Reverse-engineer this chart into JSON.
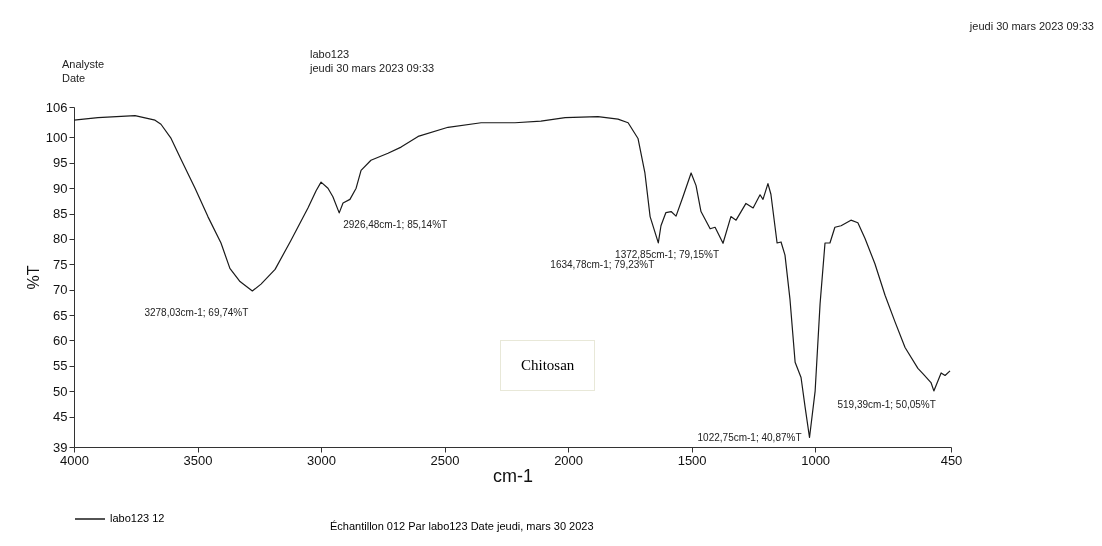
{
  "chart_data": {
    "type": "line",
    "xlabel": "cm-1",
    "ylabel": "%T",
    "x": [
      4000,
      3903,
      3753,
      3672,
      3648,
      3607,
      3567,
      3510,
      3458,
      3405,
      3369,
      3328,
      3278.03,
      3243,
      3186,
      3122,
      3053,
      3020,
      3000,
      2972,
      2952,
      2926.48,
      2911,
      2883,
      2858,
      2838,
      2798,
      2729,
      2676,
      2607,
      2486,
      2352,
      2215,
      2110,
      2012,
      1879,
      1798,
      1757,
      1717,
      1689,
      1668,
      1634.78,
      1624,
      1604,
      1583,
      1563,
      1535,
      1502,
      1482,
      1462,
      1425,
      1405,
      1372.85,
      1341,
      1320,
      1280,
      1251,
      1223,
      1211,
      1191,
      1179,
      1154,
      1138,
      1122,
      1102,
      1081,
      1057,
      1041,
      1022.75,
      1000,
      980,
      960,
      940,
      920,
      895,
      855,
      827,
      798,
      758,
      717,
      677,
      636,
      584,
      563,
      531,
      519.39,
      490,
      474,
      454
    ],
    "series": [
      {
        "name": "labo123 12",
        "color": "#1a1a1a",
        "values": [
          103.4,
          103.9,
          104.3,
          103.4,
          102.6,
          99.8,
          95.7,
          90,
          84.4,
          79.2,
          74.2,
          71.6,
          69.74,
          71.1,
          74,
          79.7,
          86.1,
          89.5,
          91.2,
          90,
          88.3,
          85.14,
          87.1,
          87.8,
          90,
          93.5,
          95.5,
          96.9,
          98.1,
          100.2,
          102,
          102.9,
          102.9,
          103.2,
          103.9,
          104.1,
          103.6,
          102.9,
          99.8,
          93,
          84.4,
          79.23,
          82.6,
          85.2,
          85.4,
          84.5,
          88.3,
          93,
          90.5,
          85.4,
          82,
          82.3,
          79.15,
          84.4,
          83.7,
          87,
          86.1,
          88.7,
          87.8,
          90.9,
          88.8,
          79.2,
          79.4,
          76.8,
          68.2,
          55.7,
          52.7,
          47,
          40.87,
          50,
          67.2,
          79.2,
          79.2,
          82.3,
          82.6,
          83.7,
          83.2,
          80.1,
          75.1,
          68.9,
          63.7,
          58.6,
          54.5,
          53.4,
          51.7,
          50.05,
          53.6,
          53.1,
          54
        ]
      }
    ],
    "xlim": [
      4000,
      450
    ],
    "xticks": [
      4000,
      3500,
      3000,
      2500,
      2000,
      1500,
      1000,
      450
    ],
    "ylim": [
      39,
      106
    ],
    "yticks": [
      39,
      45,
      50,
      55,
      60,
      65,
      70,
      75,
      80,
      85,
      90,
      95,
      100,
      106
    ],
    "grid": false,
    "legend": "bottom",
    "marker": "none",
    "line_style": "solid",
    "annotations": [
      "Analyste",
      "labo123",
      "Date",
      "jeudi 30 mars 2023 09:33",
      "jeudi 30 mars 2023 09:33",
      "Chitosan",
      "Échantillon 012 Par labo123 Date jeudi, mars 30 2023",
      {
        "text": "3278,03cm-1; 69,74%T",
        "x": 3278.03,
        "y": 69.74
      },
      {
        "text": "2926,48cm-1; 85,14%T",
        "x": 2926.48,
        "y": 85.14
      },
      {
        "text": "1634,78cm-1; 79,23%T",
        "x": 1634.78,
        "y": 79.23
      },
      {
        "text": "1372,85cm-1; 79,15%T",
        "x": 1372.85,
        "y": 79.15
      },
      {
        "text": "1022,75cm-1; 40,87%T",
        "x": 1022.75,
        "y": 40.87
      },
      {
        "text": "519,39cm-1; 50,05%T",
        "x": 519.39,
        "y": 50.05
      }
    ]
  }
}
